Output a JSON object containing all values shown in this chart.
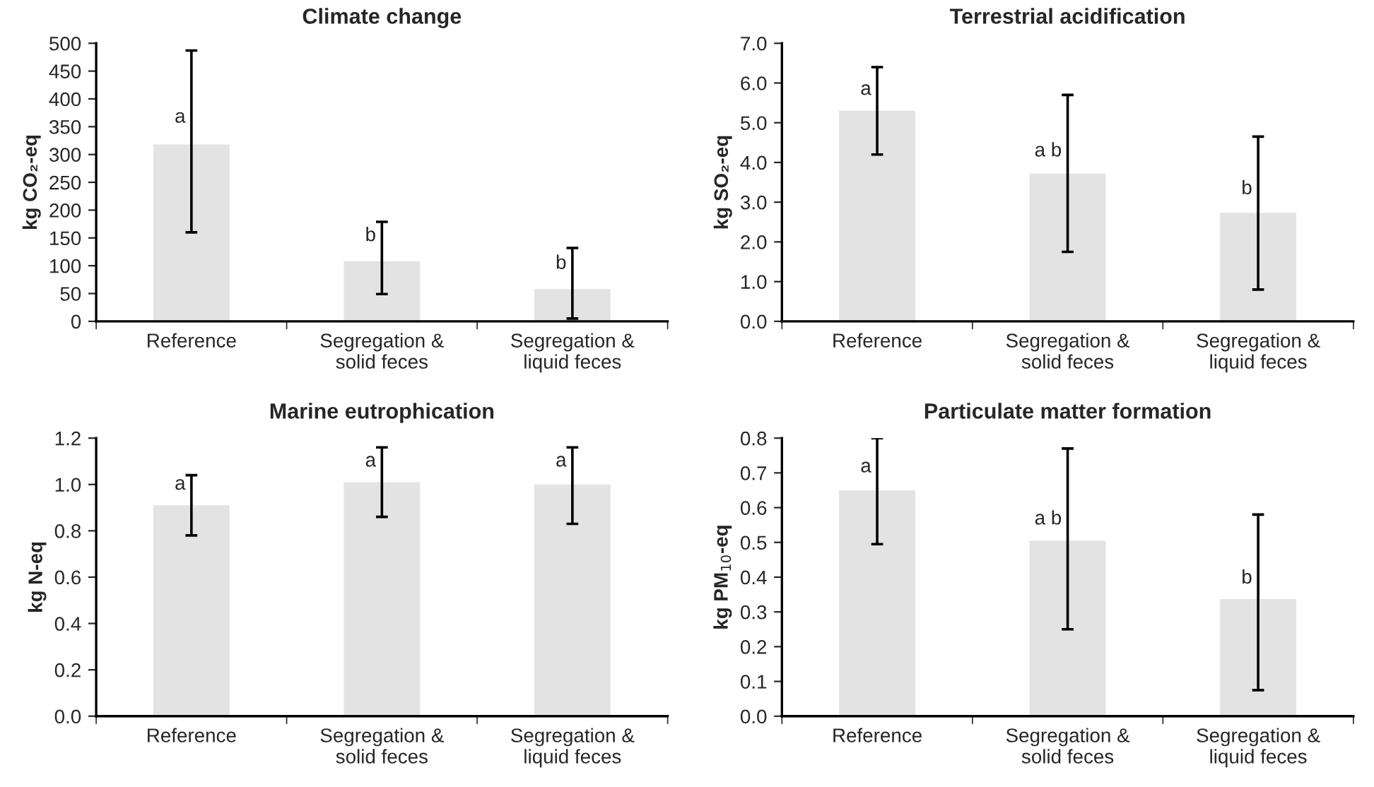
{
  "chart_data": [
    {
      "type": "bar",
      "title": "Climate change",
      "ylabel": "kg CO₂-eq",
      "categories": [
        "Reference",
        "Segregation &\nsolid feces",
        "Segregation &\nliquid feces"
      ],
      "values": [
        318,
        108,
        58
      ],
      "errors": [
        [
          160,
          487
        ],
        [
          49,
          179
        ],
        [
          5,
          132
        ]
      ],
      "color": "#e3e3e3",
      "ylim": [
        0,
        500
      ],
      "yticks": [
        0,
        50,
        100,
        150,
        200,
        250,
        300,
        350,
        400,
        450,
        500
      ],
      "grid": false,
      "annotations": [
        {
          "text": "a",
          "x": "Reference",
          "y": 350
        },
        {
          "text": "b",
          "x": "Segregation &\nsolid feces",
          "y": 137
        },
        {
          "text": "b",
          "x": "Segregation &\nliquid feces",
          "y": 87
        }
      ]
    },
    {
      "type": "bar",
      "title": "Terrestrial acidification",
      "ylabel": "kg SO₂-eq",
      "categories": [
        "Reference",
        "Segregation &\nsolid feces",
        "Segregation &\nliquid feces"
      ],
      "values": [
        5.3,
        3.72,
        2.73
      ],
      "errors": [
        [
          4.2,
          6.4
        ],
        [
          1.75,
          5.7
        ],
        [
          0.8,
          4.65
        ]
      ],
      "color": "#e3e3e3",
      "ylim": [
        0,
        7
      ],
      "yticks": [
        {
          "value": 0,
          "label": "0.0"
        },
        {
          "value": 1,
          "label": "1.0"
        },
        {
          "value": 2,
          "label": "2.0"
        },
        {
          "value": 3,
          "label": "3.0"
        },
        {
          "value": 4,
          "label": "4.0"
        },
        {
          "value": 5,
          "label": "5.0"
        },
        {
          "value": 6,
          "label": "6.0"
        },
        {
          "value": 7,
          "label": "7.0"
        }
      ],
      "grid": false,
      "annotations": [
        {
          "text": "a",
          "x": "Reference",
          "y": 5.6
        },
        {
          "text": "a b",
          "x": "Segregation &\nsolid feces",
          "y": 4.05
        },
        {
          "text": "b",
          "x": "Segregation &\nliquid feces",
          "y": 3.1
        }
      ]
    },
    {
      "type": "bar",
      "title": "Marine eutrophication",
      "ylabel": "kg N-eq",
      "categories": [
        "Reference",
        "Segregation &\nsolid feces",
        "Segregation &\nliquid feces"
      ],
      "values": [
        0.91,
        1.01,
        1.0
      ],
      "errors": [
        [
          0.78,
          1.04
        ],
        [
          0.86,
          1.16
        ],
        [
          0.83,
          1.16
        ]
      ],
      "color": "#e3e3e3",
      "ylim": [
        0,
        1.2
      ],
      "yticks": [
        {
          "value": 0,
          "label": "0.0"
        },
        0.2,
        0.4,
        0.6,
        0.8,
        {
          "value": 1,
          "label": "1.0"
        },
        1.2
      ],
      "grid": false,
      "annotations": [
        {
          "text": "a",
          "x": "Reference",
          "y": 0.96
        },
        {
          "text": "a",
          "x": "Segregation &\nsolid feces",
          "y": 1.06
        },
        {
          "text": "a",
          "x": "Segregation &\nliquid feces",
          "y": 1.06
        }
      ]
    },
    {
      "type": "bar",
      "title": "Particulate matter formation",
      "ylabel": "kg PM$_{10}$-eq",
      "categories": [
        "Reference",
        "Segregation &\nsolid feces",
        "Segregation &\nliquid feces"
      ],
      "values": [
        0.65,
        0.505,
        0.337
      ],
      "errors": [
        [
          0.495,
          0.8
        ],
        [
          0.25,
          0.77
        ],
        [
          0.075,
          0.58
        ]
      ],
      "color": "#e3e3e3",
      "ylim": [
        0,
        0.8
      ],
      "yticks": [
        {
          "value": 0,
          "label": "0.0"
        },
        0.1,
        0.2,
        0.3,
        0.4,
        0.5,
        0.6,
        0.7,
        0.8
      ],
      "grid": false,
      "annotations": [
        {
          "text": "a",
          "x": "Reference",
          "y": 0.69
        },
        {
          "text": "a b",
          "x": "Segregation &\nsolid feces",
          "y": 0.54
        },
        {
          "text": "b",
          "x": "Segregation &\nliquid feces",
          "y": 0.37
        }
      ]
    }
  ]
}
